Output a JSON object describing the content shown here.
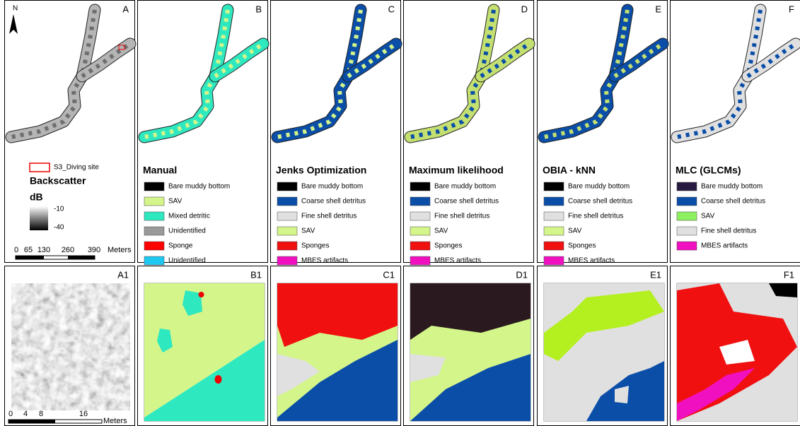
{
  "top_panels": [
    {
      "label": "A",
      "north": "N",
      "site_legend": "S3_Diving site",
      "title": "Backscatter",
      "unit": "dB",
      "ramp_labels": [
        "-10",
        "-40"
      ],
      "scale_labels": [
        "0",
        "65",
        "130",
        "260",
        "390"
      ],
      "scale_unit": "Meters"
    },
    {
      "label": "B",
      "title": "Manual",
      "legend": [
        {
          "name": "Bare muddy bottom",
          "color": "#000000"
        },
        {
          "name": "SAV",
          "color": "#d4f58a"
        },
        {
          "name": "Mixed detritic",
          "color": "#2ee8c0"
        },
        {
          "name": "Unidentified",
          "color": "#9a9a9a"
        },
        {
          "name": "Sponge",
          "color": "#ff0000"
        },
        {
          "name": "Unidentified",
          "color": "#1ec8f0"
        }
      ]
    },
    {
      "label": "C",
      "title": "Jenks Optimization",
      "legend": [
        {
          "name": "Bare muddy bottom",
          "color": "#000000"
        },
        {
          "name": "Coarse shell detritus",
          "color": "#0a4ea8"
        },
        {
          "name": "Fine shell detritus",
          "color": "#e0e0e0"
        },
        {
          "name": "SAV",
          "color": "#d4f58a"
        },
        {
          "name": "Sponges",
          "color": "#f01010"
        },
        {
          "name": "MBES artifacts",
          "color": "#f010c0"
        }
      ]
    },
    {
      "label": "D",
      "title": "Maximum likelihood",
      "legend": [
        {
          "name": "Bare muddy bottom",
          "color": "#000000"
        },
        {
          "name": "Coarse shell detritus",
          "color": "#0a4ea8"
        },
        {
          "name": "Fine shell detritus",
          "color": "#e0e0e0"
        },
        {
          "name": "SAV",
          "color": "#d4f58a"
        },
        {
          "name": "Sponges",
          "color": "#f01010"
        },
        {
          "name": "MBES artifacts",
          "color": "#f010c0"
        }
      ]
    },
    {
      "label": "E",
      "title": "OBIA - kNN",
      "legend": [
        {
          "name": "Bare muddy bottom",
          "color": "#000000"
        },
        {
          "name": "Coarse shell detritus",
          "color": "#0a4ea8"
        },
        {
          "name": "Fine shell detritus",
          "color": "#e0e0e0"
        },
        {
          "name": "SAV",
          "color": "#d4f58a"
        },
        {
          "name": "Sponges",
          "color": "#f01010"
        },
        {
          "name": "MBES artifacts",
          "color": "#f010c0"
        }
      ]
    },
    {
      "label": "F",
      "title": "MLC (GLCMs)",
      "legend": [
        {
          "name": "Bare muddy bottom",
          "color": "#261a40"
        },
        {
          "name": "Coarse shell detritus",
          "color": "#0a4ea8"
        },
        {
          "name": "SAV",
          "color": "#8cf060"
        },
        {
          "name": "Fine shell detritus",
          "color": "#e0e0e0"
        },
        {
          "name": "MBES artifacts",
          "color": "#f010c0"
        }
      ]
    }
  ],
  "bottom_panels": [
    {
      "label": "A1",
      "scale_labels": [
        "0",
        "4",
        "8",
        "16"
      ],
      "scale_unit": "Meters"
    },
    {
      "label": "B1"
    },
    {
      "label": "C1"
    },
    {
      "label": "D1"
    },
    {
      "label": "E1"
    },
    {
      "label": "F1"
    }
  ]
}
